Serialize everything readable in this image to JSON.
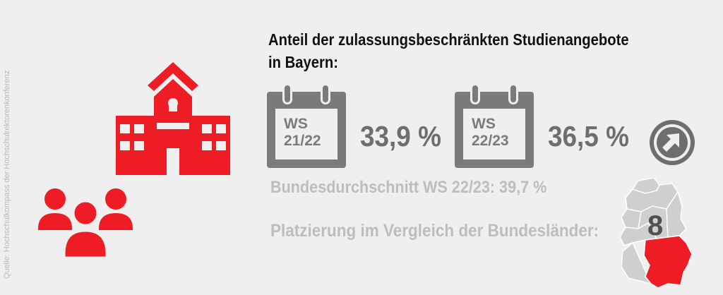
{
  "source": "Quelle: Hochschulkompass der Hochschulrektorenkonferenz",
  "headline": {
    "line1": "Anteil der zulassungsbeschränkten Studienangebote",
    "line2": "in Bayern:"
  },
  "semesters": [
    {
      "label_line1": "WS",
      "label_line2": "21/22",
      "value": "33,9 %"
    },
    {
      "label_line1": "WS",
      "label_line2": "22/23",
      "value": "36,5 %"
    }
  ],
  "national_average": "Bundesdurchschnitt WS 22/23: 39,7 %",
  "ranking_label": "Platzierung im Vergleich der Bundesländer:",
  "rank": "8",
  "icons": {
    "school": "school-building-icon",
    "people": "people-group-icon",
    "calendar": "calendar-icon",
    "trend": "trend-up-arrow-icon",
    "map": "germany-map-icon"
  },
  "colors": {
    "accent_red": "#ee1c25",
    "gray_dark": "#6e6e6e",
    "gray_light": "#bdbdbd",
    "background": "#efefef"
  }
}
